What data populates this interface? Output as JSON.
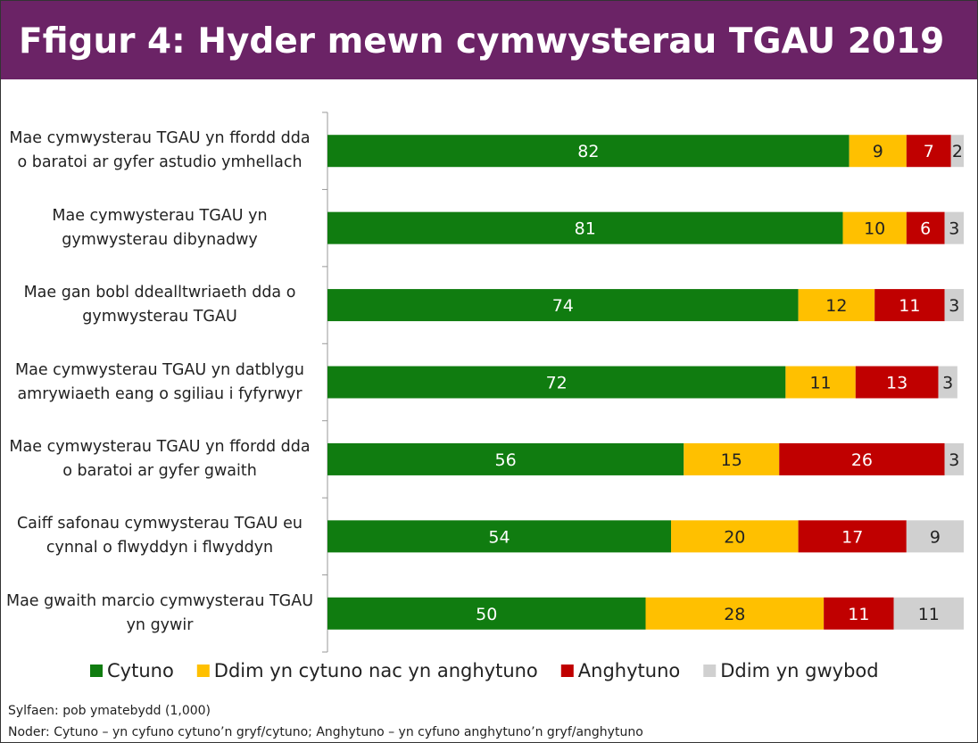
{
  "chart_data": {
    "type": "stacked-bar-horizontal",
    "title": "Ffigur 4: Hyder mewn cymwysterau TGAU 2019 %",
    "categories": [
      "Mae cymwysterau TGAU yn ffordd dda o baratoi ar gyfer astudio ymhellach",
      "Mae cymwysterau TGAU yn gymwysterau dibynadwy",
      "Mae gan bobl ddealltwriaeth dda o gymwysterau TGAU",
      "Mae cymwysterau TGAU yn datblygu amrywiaeth eang o sgiliau i fyfyrwyr",
      "Mae cymwysterau TGAU yn ffordd dda o baratoi ar gyfer gwaith",
      "Caiff safonau cymwysterau TGAU eu cynnal o flwyddyn i flwyddyn",
      "Mae gwaith marcio cymwysterau TGAU yn gywir"
    ],
    "series": [
      {
        "name": "Cytuno",
        "color": "#107c10",
        "values": [
          82,
          81,
          74,
          72,
          56,
          54,
          50
        ]
      },
      {
        "name": "Ddim yn cytuno nac yn anghytuno",
        "color": "#ffc000",
        "values": [
          9,
          10,
          12,
          11,
          15,
          20,
          28
        ]
      },
      {
        "name": "Anghytuno",
        "color": "#c00000",
        "values": [
          7,
          6,
          11,
          13,
          26,
          17,
          11
        ]
      },
      {
        "name": "Ddim yn gwybod",
        "color": "#d0d0d0",
        "values": [
          2,
          3,
          3,
          3,
          3,
          9,
          11
        ]
      }
    ],
    "xlim": [
      0,
      100
    ],
    "legend": "bottom",
    "notes": [
      "Sylfaen: pob ymatebydd (1,000)",
      "Noder: Cytuno – yn cyfuno cytuno’n gryf/cytuno; Anghytuno – yn cyfuno anghytuno’n gryf/anghytuno"
    ]
  }
}
